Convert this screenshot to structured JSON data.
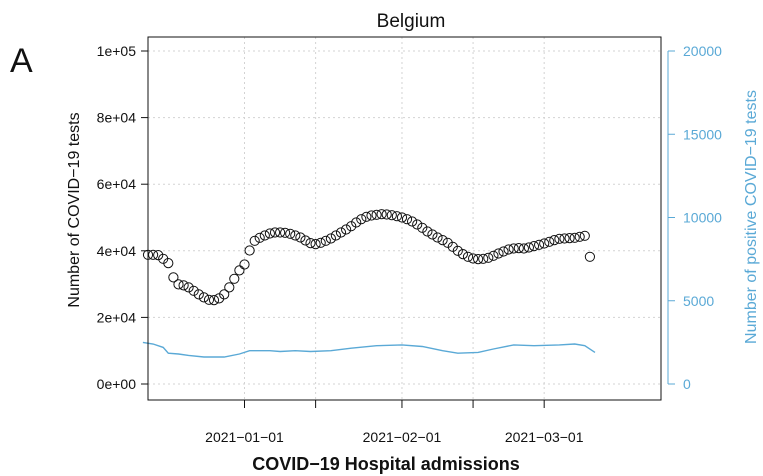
{
  "panel_label": "A",
  "chart_data": {
    "type": "scatter",
    "title": "Belgium",
    "xlabel": "COVID−19 Hospital admissions",
    "ylabel": "Number of COVID−19 tests",
    "ylabel_right": "Number of positive COVID−19 tests",
    "grid": true,
    "x_range": [
      "2020-12-13",
      "2021-03-24"
    ],
    "ylim": [
      0,
      100000
    ],
    "ylim_right": [
      0,
      20000
    ],
    "colors": {
      "tests": "#111111",
      "positive": "#5aa9d6"
    },
    "x_ticks": [
      {
        "date": "2021-01-01",
        "label": "2021−01−01"
      },
      {
        "date": "2021-01-15",
        "label": ""
      },
      {
        "date": "2021-02-01",
        "label": "2021−02−01"
      },
      {
        "date": "2021-02-15",
        "label": ""
      },
      {
        "date": "2021-03-01",
        "label": "2021−03−01"
      }
    ],
    "y_ticks": [
      {
        "value": 0,
        "label": "0e+00"
      },
      {
        "value": 20000,
        "label": "2e+04"
      },
      {
        "value": 40000,
        "label": "4e+04"
      },
      {
        "value": 60000,
        "label": "6e+04"
      },
      {
        "value": 80000,
        "label": "8e+04"
      },
      {
        "value": 100000,
        "label": "1e+05"
      }
    ],
    "y_ticks_right": [
      {
        "value": 0,
        "label": "0"
      },
      {
        "value": 5000,
        "label": "5000"
      },
      {
        "value": 10000,
        "label": "10000"
      },
      {
        "value": 15000,
        "label": "15000"
      },
      {
        "value": 20000,
        "label": "20000"
      }
    ],
    "series": [
      {
        "axis": "left",
        "style": "points",
        "points": [
          [
            "2020-12-13",
            38800
          ],
          [
            "2020-12-14",
            38800
          ],
          [
            "2020-12-15",
            38700
          ],
          [
            "2020-12-16",
            37600
          ],
          [
            "2020-12-17",
            36300
          ],
          [
            "2020-12-18",
            32000
          ],
          [
            "2020-12-19",
            29900
          ],
          [
            "2020-12-20",
            29600
          ],
          [
            "2020-12-21",
            29000
          ],
          [
            "2020-12-22",
            28000
          ],
          [
            "2020-12-23",
            26900
          ],
          [
            "2020-12-24",
            26000
          ],
          [
            "2020-12-25",
            25300
          ],
          [
            "2020-12-26",
            25200
          ],
          [
            "2020-12-27",
            25700
          ],
          [
            "2020-12-28",
            26900
          ],
          [
            "2020-12-29",
            29000
          ],
          [
            "2020-12-30",
            31600
          ],
          [
            "2020-12-31",
            34100
          ],
          [
            "2021-01-01",
            35900
          ],
          [
            "2021-01-02",
            40100
          ],
          [
            "2021-01-03",
            43000
          ],
          [
            "2021-01-04",
            43900
          ],
          [
            "2021-01-05",
            44600
          ],
          [
            "2021-01-06",
            45200
          ],
          [
            "2021-01-07",
            45500
          ],
          [
            "2021-01-08",
            45500
          ],
          [
            "2021-01-09",
            45400
          ],
          [
            "2021-01-10",
            45100
          ],
          [
            "2021-01-11",
            44600
          ],
          [
            "2021-01-12",
            44000
          ],
          [
            "2021-01-13",
            43100
          ],
          [
            "2021-01-14",
            42300
          ],
          [
            "2021-01-15",
            42000
          ],
          [
            "2021-01-16",
            42400
          ],
          [
            "2021-01-17",
            43000
          ],
          [
            "2021-01-18",
            43700
          ],
          [
            "2021-01-19",
            44600
          ],
          [
            "2021-01-20",
            45500
          ],
          [
            "2021-01-21",
            46400
          ],
          [
            "2021-01-22",
            47400
          ],
          [
            "2021-01-23",
            48500
          ],
          [
            "2021-01-24",
            49500
          ],
          [
            "2021-01-25",
            50200
          ],
          [
            "2021-01-26",
            50600
          ],
          [
            "2021-01-27",
            50800
          ],
          [
            "2021-01-28",
            51000
          ],
          [
            "2021-01-29",
            50900
          ],
          [
            "2021-01-30",
            50700
          ],
          [
            "2021-01-31",
            50400
          ],
          [
            "2021-02-01",
            50000
          ],
          [
            "2021-02-02",
            49500
          ],
          [
            "2021-02-03",
            48800
          ],
          [
            "2021-02-04",
            47900
          ],
          [
            "2021-02-05",
            46900
          ],
          [
            "2021-02-06",
            45800
          ],
          [
            "2021-02-07",
            44900
          ],
          [
            "2021-02-08",
            44000
          ],
          [
            "2021-02-09",
            43200
          ],
          [
            "2021-02-10",
            42400
          ],
          [
            "2021-02-11",
            41200
          ],
          [
            "2021-02-12",
            40000
          ],
          [
            "2021-02-13",
            39000
          ],
          [
            "2021-02-14",
            38200
          ],
          [
            "2021-02-15",
            37700
          ],
          [
            "2021-02-16",
            37500
          ],
          [
            "2021-02-17",
            37600
          ],
          [
            "2021-02-18",
            37900
          ],
          [
            "2021-02-19",
            38500
          ],
          [
            "2021-02-20",
            39200
          ],
          [
            "2021-02-21",
            39800
          ],
          [
            "2021-02-22",
            40400
          ],
          [
            "2021-02-23",
            40700
          ],
          [
            "2021-02-24",
            40800
          ],
          [
            "2021-02-25",
            40700
          ],
          [
            "2021-02-26",
            41000
          ],
          [
            "2021-02-27",
            41400
          ],
          [
            "2021-02-28",
            41800
          ],
          [
            "2021-03-01",
            42200
          ],
          [
            "2021-03-02",
            42700
          ],
          [
            "2021-03-03",
            43200
          ],
          [
            "2021-03-04",
            43600
          ],
          [
            "2021-03-05",
            43700
          ],
          [
            "2021-03-06",
            43800
          ],
          [
            "2021-03-07",
            43900
          ],
          [
            "2021-03-08",
            44200
          ],
          [
            "2021-03-09",
            44500
          ],
          [
            "2021-03-10",
            38200
          ]
        ]
      },
      {
        "axis": "right",
        "style": "line",
        "points": [
          [
            "2020-12-12",
            2500
          ],
          [
            "2020-12-14",
            2400
          ],
          [
            "2020-12-16",
            2200
          ],
          [
            "2020-12-17",
            1850
          ],
          [
            "2020-12-19",
            1800
          ],
          [
            "2020-12-21",
            1720
          ],
          [
            "2020-12-24",
            1620
          ],
          [
            "2020-12-28",
            1620
          ],
          [
            "2020-12-31",
            1800
          ],
          [
            "2021-01-02",
            2000
          ],
          [
            "2021-01-06",
            2000
          ],
          [
            "2021-01-08",
            1950
          ],
          [
            "2021-01-11",
            2000
          ],
          [
            "2021-01-14",
            1950
          ],
          [
            "2021-01-18",
            2000
          ],
          [
            "2021-01-22",
            2150
          ],
          [
            "2021-01-27",
            2300
          ],
          [
            "2021-02-01",
            2350
          ],
          [
            "2021-02-05",
            2250
          ],
          [
            "2021-02-09",
            2000
          ],
          [
            "2021-02-12",
            1850
          ],
          [
            "2021-02-16",
            1900
          ],
          [
            "2021-02-19",
            2100
          ],
          [
            "2021-02-23",
            2350
          ],
          [
            "2021-02-27",
            2300
          ],
          [
            "2021-03-04",
            2350
          ],
          [
            "2021-03-07",
            2400
          ],
          [
            "2021-03-09",
            2300
          ],
          [
            "2021-03-11",
            1900
          ]
        ]
      }
    ]
  }
}
